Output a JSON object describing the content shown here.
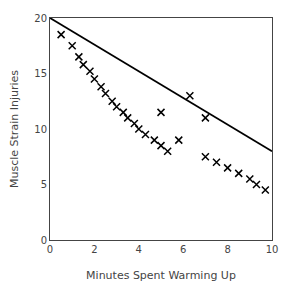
{
  "chart_data": {
    "type": "scatter",
    "xlabel": "Minutes Spent Warming Up",
    "ylabel": "Muscle Strain Injuries",
    "xlim": [
      0,
      10
    ],
    "ylim": [
      0,
      20
    ],
    "xticks": [
      0,
      2,
      4,
      6,
      8,
      10
    ],
    "yticks": [
      0,
      5,
      10,
      15,
      20
    ],
    "grid": false,
    "series": [
      {
        "type": "scatter",
        "marker": "x",
        "color": "#000000",
        "x": [
          0.5,
          1.0,
          1.3,
          1.5,
          1.8,
          2.0,
          2.3,
          2.5,
          2.8,
          3.0,
          3.3,
          3.5,
          3.8,
          4.0,
          4.3,
          4.7,
          5.0,
          5.3,
          5.8,
          6.3,
          7.0,
          7.5,
          8.0,
          8.5,
          9.0,
          9.3,
          9.7,
          5.0,
          7.0
        ],
        "values": [
          18.5,
          17.5,
          16.5,
          15.8,
          15.2,
          14.5,
          13.8,
          13.2,
          12.5,
          12.0,
          11.5,
          11.0,
          10.5,
          10.0,
          9.5,
          9.0,
          8.5,
          8.0,
          9.0,
          13.0,
          7.5,
          7.0,
          6.5,
          6.0,
          5.5,
          5.0,
          4.5,
          11.5,
          11.0
        ]
      },
      {
        "type": "line",
        "line_style": "solid",
        "color": "#000000",
        "x": [
          0,
          10
        ],
        "values": [
          20,
          8
        ]
      }
    ]
  }
}
